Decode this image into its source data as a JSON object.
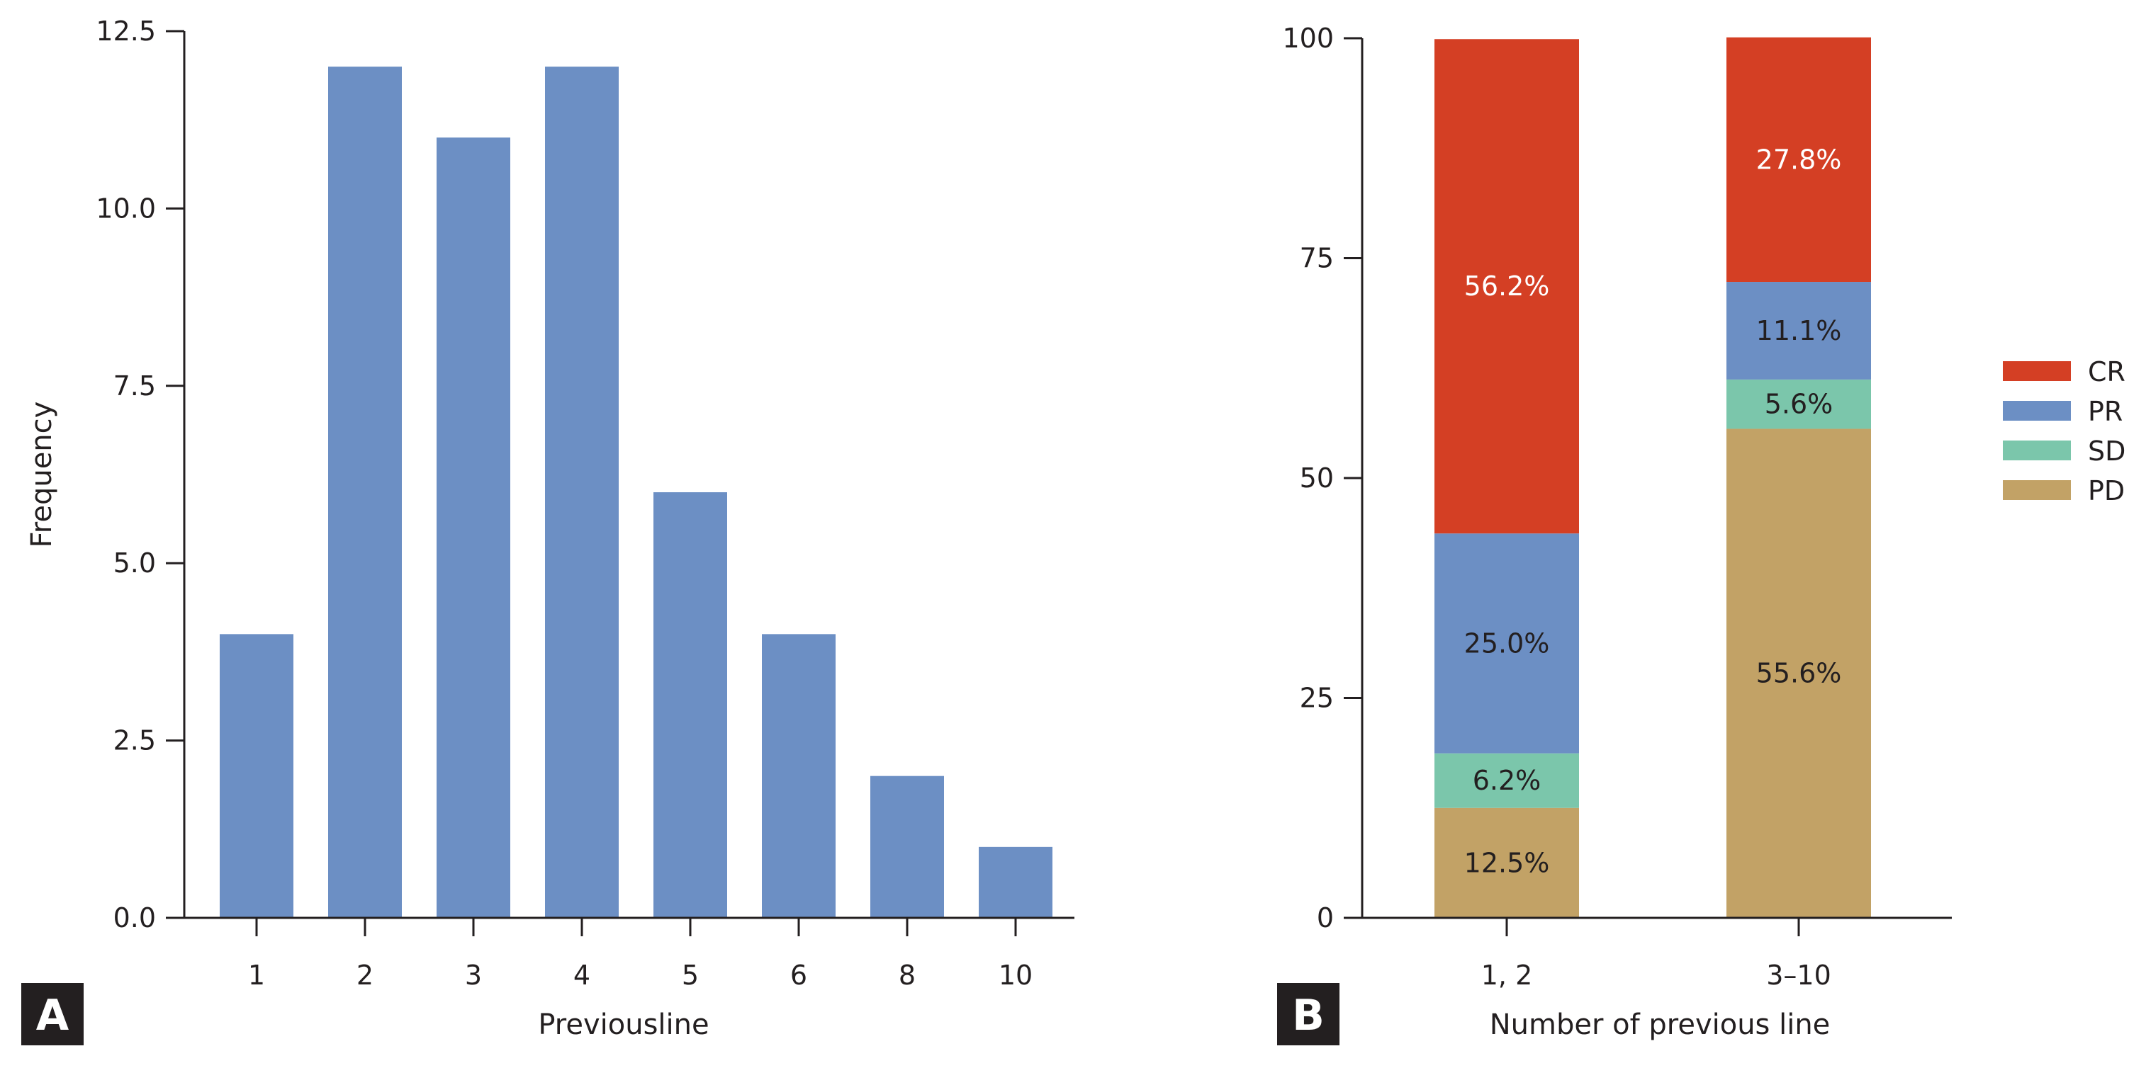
{
  "chart_data": [
    {
      "type": "bar",
      "panel_label": "A",
      "categories": [
        "1",
        "2",
        "3",
        "4",
        "5",
        "6",
        "8",
        "10"
      ],
      "values": [
        4,
        12,
        11,
        12,
        6,
        4,
        2,
        1
      ],
      "xlabel": "Previousline",
      "ylabel": "Frequency",
      "ylim": [
        0,
        12.5
      ],
      "yticks": [
        "0.0",
        "2.5",
        "5.0",
        "7.5",
        "10.0",
        "12.5"
      ],
      "color": "#6c8fc4",
      "grid": false
    },
    {
      "type": "bar",
      "stacked": true,
      "panel_label": "B",
      "categories": [
        "1, 2",
        "3–10"
      ],
      "series": [
        {
          "name": "PD",
          "values": [
            12.5,
            55.6
          ],
          "labels": [
            "12.5%",
            "55.6%"
          ],
          "color": "#c2a266",
          "label_color": "#231f20"
        },
        {
          "name": "SD",
          "values": [
            6.2,
            5.6
          ],
          "labels": [
            "6.2%",
            "5.6%"
          ],
          "color": "#7bc6ab",
          "label_color": "#231f20"
        },
        {
          "name": "PR",
          "values": [
            25.0,
            11.1
          ],
          "labels": [
            "25.0%",
            "11.1%"
          ],
          "color": "#6c8fc4",
          "label_color": "#231f20"
        },
        {
          "name": "CR",
          "values": [
            56.2,
            27.8
          ],
          "labels": [
            "56.2%",
            "27.8%"
          ],
          "color": "#d43f24",
          "label_color": "#ffffff"
        }
      ],
      "legend_order": [
        "CR",
        "PR",
        "SD",
        "PD"
      ],
      "xlabel": "Number of previous line",
      "ylabel": "",
      "ylim": [
        0,
        100
      ],
      "yticks": [
        "0",
        "25",
        "50",
        "75",
        "100"
      ],
      "legend_position": "right",
      "grid": false
    }
  ]
}
